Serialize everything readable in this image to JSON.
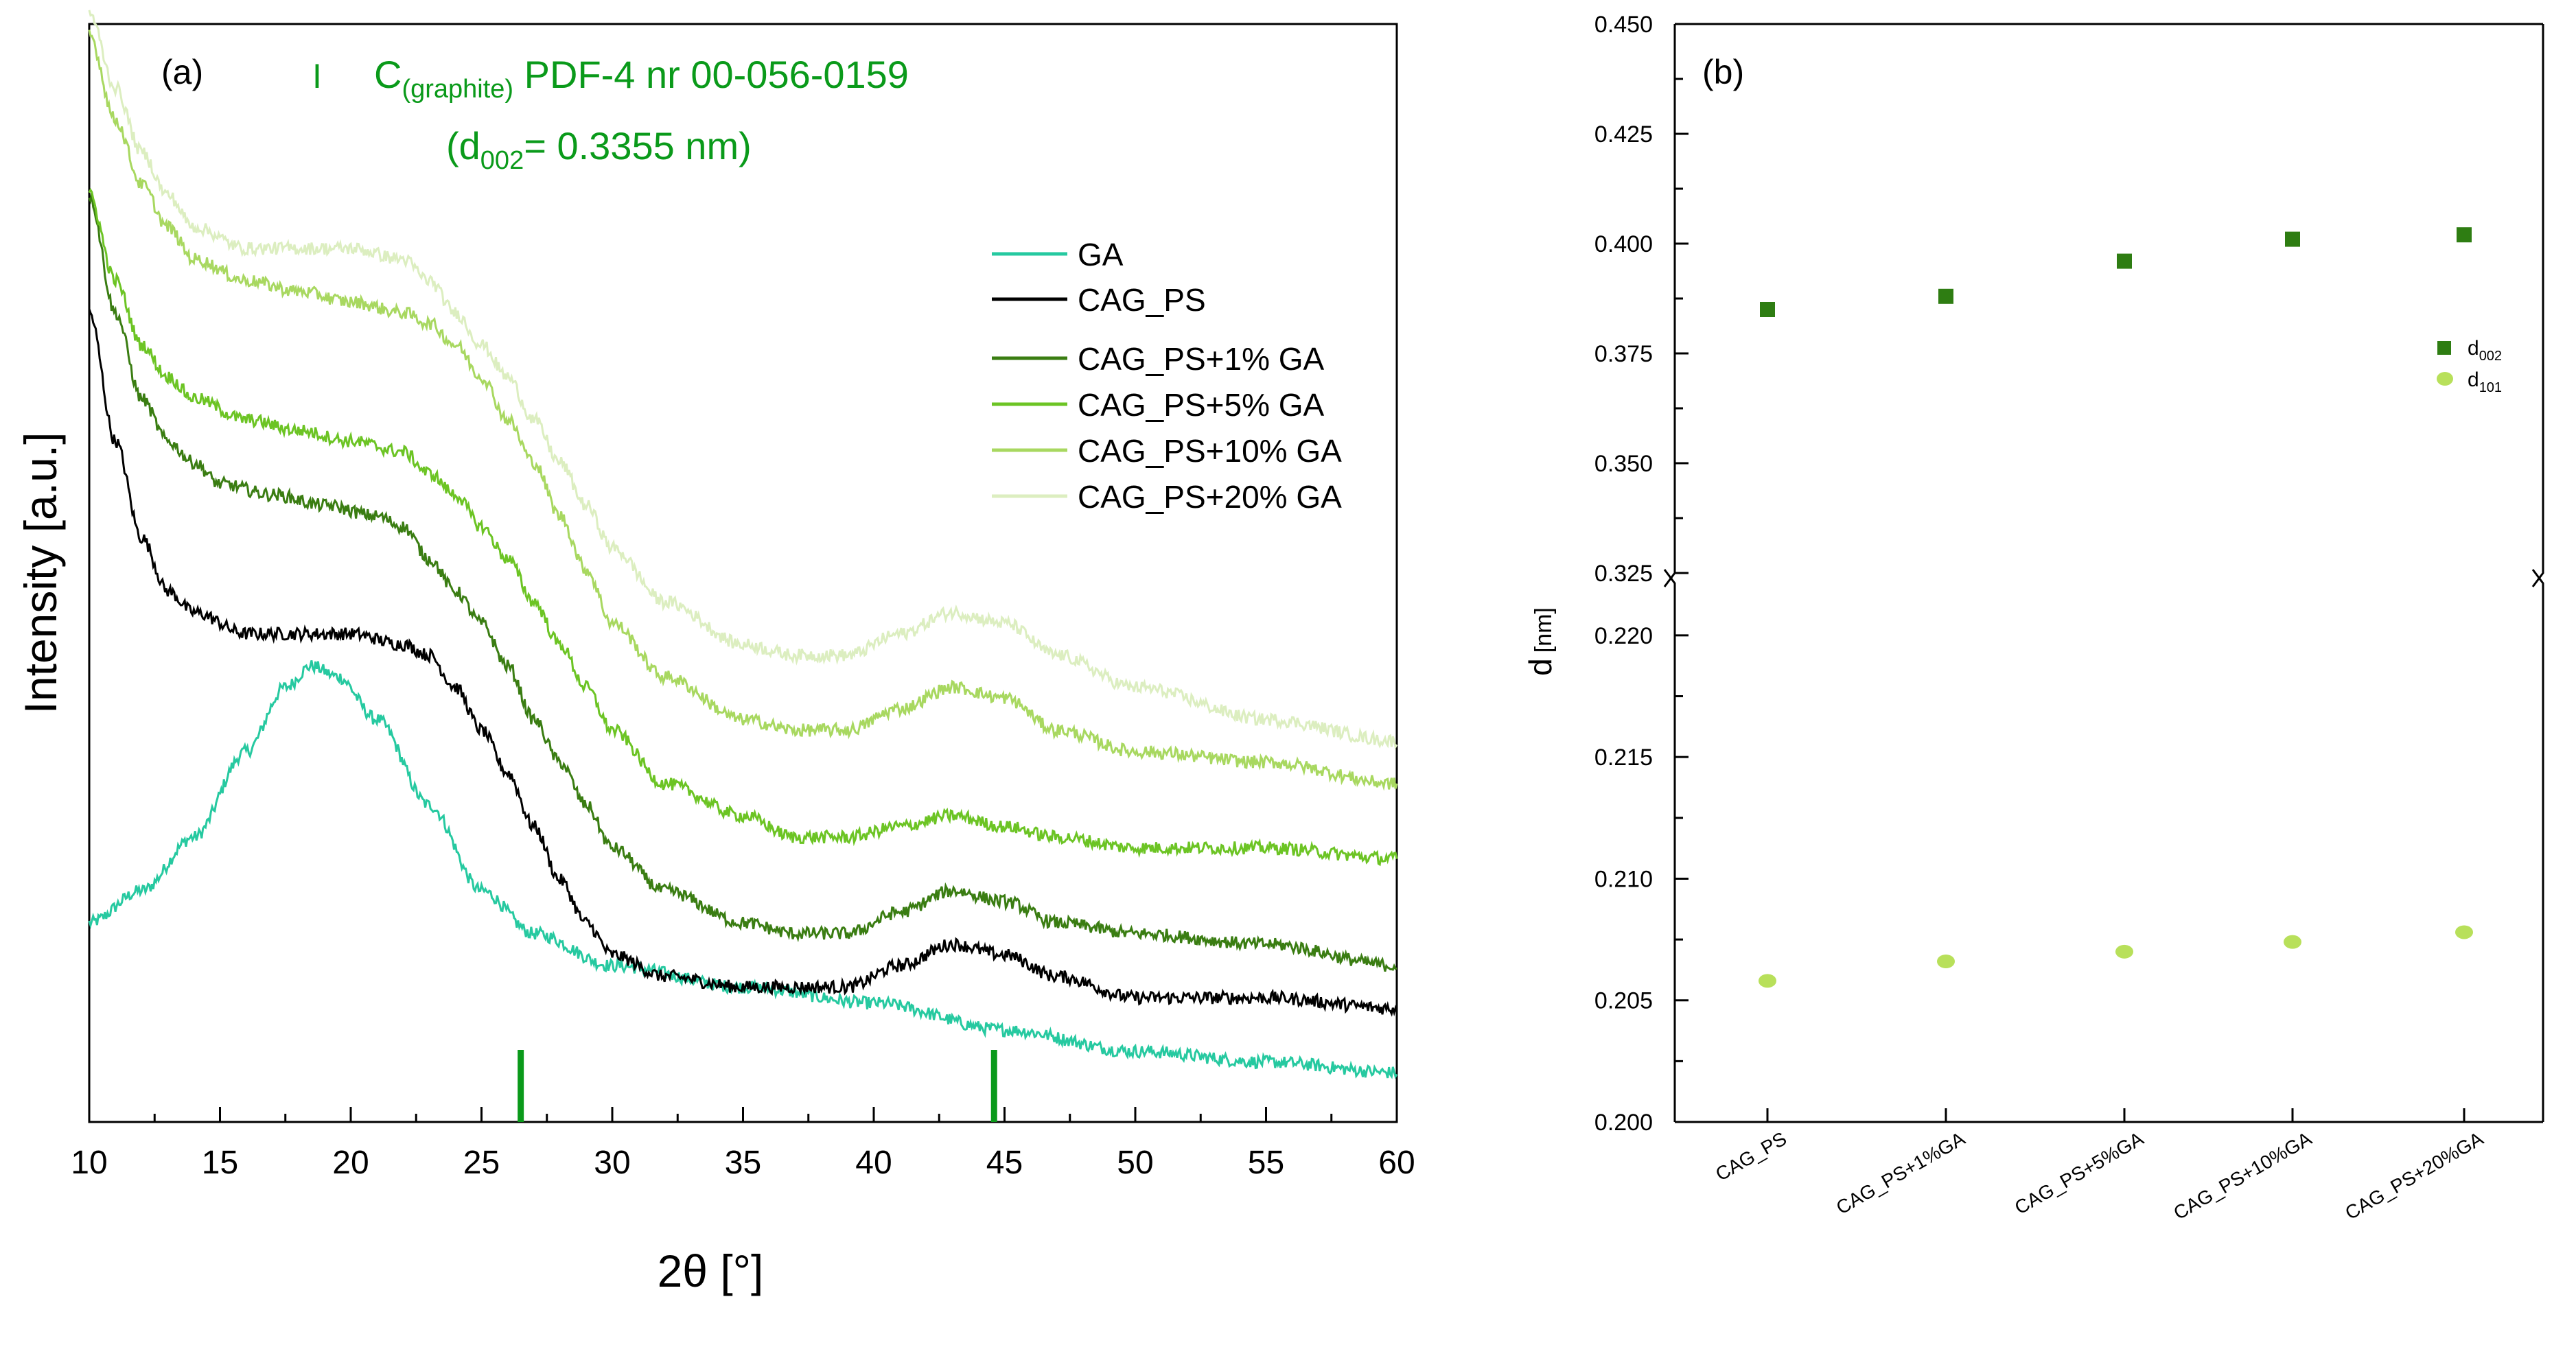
{
  "chart_data": [
    {
      "type": "line",
      "panel_label": "(a)",
      "xlabel": "2θ [°]",
      "ylabel": "Intensity [a.u.]",
      "xlim": [
        10,
        60
      ],
      "x_ticks": [
        10,
        15,
        20,
        25,
        30,
        35,
        40,
        45,
        50,
        55,
        60
      ],
      "y_tick_labels": "none",
      "reference": {
        "marker_legend": "I",
        "name_main": "C",
        "name_sub": "(graphite)",
        "name_rest": " PDF-4 nr 00-056-0159",
        "d_prefix": "(d",
        "d_sub": "002",
        "d_rest": "= 0.3355 nm)",
        "positions": [
          26.5,
          44.6
        ],
        "color": "#0a9a1a"
      },
      "legend_position": "right",
      "series": [
        {
          "name": "GA",
          "color": "#26c9a0",
          "points": [
            [
              10,
              0.17
            ],
            [
              12,
              0.2
            ],
            [
              14,
              0.25
            ],
            [
              16,
              0.33
            ],
            [
              17.5,
              0.39
            ],
            [
              18.5,
              0.41
            ],
            [
              19.5,
              0.4
            ],
            [
              21,
              0.36
            ],
            [
              23,
              0.28
            ],
            [
              25,
              0.2
            ],
            [
              27,
              0.16
            ],
            [
              30,
              0.13
            ],
            [
              35,
              0.11
            ],
            [
              40,
              0.095
            ],
            [
              45,
              0.07
            ],
            [
              50,
              0.05
            ],
            [
              55,
              0.04
            ],
            [
              60,
              0.03
            ]
          ]
        },
        {
          "name": "CAG_PS",
          "color": "#000000",
          "points": [
            [
              10,
              0.74
            ],
            [
              11,
              0.62
            ],
            [
              12,
              0.53
            ],
            [
              13,
              0.48
            ],
            [
              14,
              0.46
            ],
            [
              16,
              0.44
            ],
            [
              18,
              0.44
            ],
            [
              20,
              0.44
            ],
            [
              22,
              0.43
            ],
            [
              23,
              0.42
            ],
            [
              24,
              0.39
            ],
            [
              25,
              0.35
            ],
            [
              26,
              0.31
            ],
            [
              27,
              0.26
            ],
            [
              28,
              0.21
            ],
            [
              29,
              0.17
            ],
            [
              30,
              0.14
            ],
            [
              32,
              0.12
            ],
            [
              35,
              0.11
            ],
            [
              37,
              0.11
            ],
            [
              39,
              0.11
            ],
            [
              41,
              0.13
            ],
            [
              43,
              0.15
            ],
            [
              45,
              0.14
            ],
            [
              47,
              0.12
            ],
            [
              50,
              0.1
            ],
            [
              55,
              0.1
            ],
            [
              60,
              0.09
            ]
          ]
        },
        {
          "name": "CAG_PS+1% GA",
          "color": "#3a7d12",
          "points": [
            [
              10,
              0.85
            ],
            [
              11,
              0.74
            ],
            [
              12,
              0.66
            ],
            [
              13,
              0.62
            ],
            [
              14,
              0.6
            ],
            [
              15,
              0.58
            ],
            [
              17,
              0.57
            ],
            [
              19,
              0.56
            ],
            [
              21,
              0.55
            ],
            [
              22,
              0.54
            ],
            [
              23,
              0.51
            ],
            [
              24,
              0.48
            ],
            [
              25,
              0.45
            ],
            [
              26,
              0.41
            ],
            [
              27,
              0.36
            ],
            [
              28,
              0.32
            ],
            [
              29,
              0.28
            ],
            [
              30,
              0.24
            ],
            [
              32,
              0.2
            ],
            [
              35,
              0.17
            ],
            [
              37,
              0.16
            ],
            [
              39,
              0.16
            ],
            [
              41,
              0.18
            ],
            [
              43,
              0.2
            ],
            [
              45,
              0.19
            ],
            [
              47,
              0.17
            ],
            [
              50,
              0.16
            ],
            [
              55,
              0.15
            ],
            [
              60,
              0.13
            ]
          ]
        },
        {
          "name": "CAG_PS+5% GA",
          "color": "#6cc424",
          "points": [
            [
              10,
              0.85
            ],
            [
              11,
              0.77
            ],
            [
              12,
              0.71
            ],
            [
              13,
              0.68
            ],
            [
              14,
              0.66
            ],
            [
              16,
              0.64
            ],
            [
              18,
              0.63
            ],
            [
              20,
              0.62
            ],
            [
              22,
              0.61
            ],
            [
              23,
              0.59
            ],
            [
              24,
              0.57
            ],
            [
              25,
              0.54
            ],
            [
              26,
              0.51
            ],
            [
              27,
              0.47
            ],
            [
              28,
              0.43
            ],
            [
              29,
              0.39
            ],
            [
              30,
              0.35
            ],
            [
              32,
              0.3
            ],
            [
              35,
              0.27
            ],
            [
              37,
              0.25
            ],
            [
              39,
              0.25
            ],
            [
              41,
              0.26
            ],
            [
              43,
              0.27
            ],
            [
              45,
              0.26
            ],
            [
              47,
              0.25
            ],
            [
              50,
              0.24
            ],
            [
              55,
              0.24
            ],
            [
              60,
              0.23
            ]
          ]
        },
        {
          "name": "CAG_PS+10% GA",
          "color": "#a8d860",
          "points": [
            [
              10,
              1.0
            ],
            [
              11,
              0.92
            ],
            [
              12,
              0.86
            ],
            [
              13,
              0.82
            ],
            [
              14,
              0.79
            ],
            [
              16,
              0.77
            ],
            [
              18,
              0.76
            ],
            [
              20,
              0.75
            ],
            [
              22,
              0.74
            ],
            [
              23,
              0.73
            ],
            [
              24,
              0.71
            ],
            [
              25,
              0.68
            ],
            [
              26,
              0.64
            ],
            [
              27,
              0.6
            ],
            [
              28,
              0.55
            ],
            [
              29,
              0.5
            ],
            [
              30,
              0.45
            ],
            [
              32,
              0.4
            ],
            [
              35,
              0.36
            ],
            [
              37,
              0.35
            ],
            [
              39,
              0.35
            ],
            [
              41,
              0.37
            ],
            [
              43,
              0.39
            ],
            [
              45,
              0.38
            ],
            [
              47,
              0.35
            ],
            [
              50,
              0.33
            ],
            [
              55,
              0.32
            ],
            [
              60,
              0.3
            ]
          ]
        },
        {
          "name": "CAG_PS+20% GA",
          "color": "#dceec0",
          "points": [
            [
              10,
              1.02
            ],
            [
              11,
              0.95
            ],
            [
              12,
              0.89
            ],
            [
              13,
              0.85
            ],
            [
              14,
              0.82
            ],
            [
              16,
              0.8
            ],
            [
              18,
              0.8
            ],
            [
              20,
              0.8
            ],
            [
              22,
              0.79
            ],
            [
              23,
              0.77
            ],
            [
              24,
              0.74
            ],
            [
              25,
              0.71
            ],
            [
              26,
              0.68
            ],
            [
              27,
              0.64
            ],
            [
              28,
              0.6
            ],
            [
              29,
              0.56
            ],
            [
              30,
              0.52
            ],
            [
              32,
              0.47
            ],
            [
              35,
              0.43
            ],
            [
              37,
              0.42
            ],
            [
              39,
              0.42
            ],
            [
              41,
              0.44
            ],
            [
              43,
              0.46
            ],
            [
              45,
              0.45
            ],
            [
              47,
              0.42
            ],
            [
              50,
              0.39
            ],
            [
              55,
              0.36
            ],
            [
              60,
              0.34
            ]
          ]
        }
      ]
    },
    {
      "type": "scatter",
      "panel_label": "(b)",
      "ylabel_main": "d",
      "ylabel_unit": "[nm]",
      "categories": [
        "CAG_PS",
        "CAG_PS+1%GA",
        "CAG_PS+5%GA",
        "CAG_PS+10%GA",
        "CAG_PS+20%GA"
      ],
      "y_axis": "broken",
      "ylim_upper": [
        0.325,
        0.45
      ],
      "ylim_lower": [
        0.2,
        0.222
      ],
      "y_ticks_upper": [
        "0.325",
        "0.350",
        "0.375",
        "0.400",
        "0.425",
        "0.450"
      ],
      "y_ticks_lower": [
        "0.200",
        "0.205",
        "0.210",
        "0.215",
        "0.220"
      ],
      "legend_position": "right",
      "series": [
        {
          "name_main": "d",
          "name_sub": "002",
          "marker": "square",
          "color": "#2e7d12",
          "values": [
            0.385,
            0.388,
            0.396,
            0.401,
            0.402
          ]
        },
        {
          "name_main": "d",
          "name_sub": "101",
          "marker": "circle",
          "color": "#b8e05a",
          "values": [
            0.2058,
            0.2066,
            0.207,
            0.2074,
            0.2078
          ]
        }
      ]
    }
  ]
}
